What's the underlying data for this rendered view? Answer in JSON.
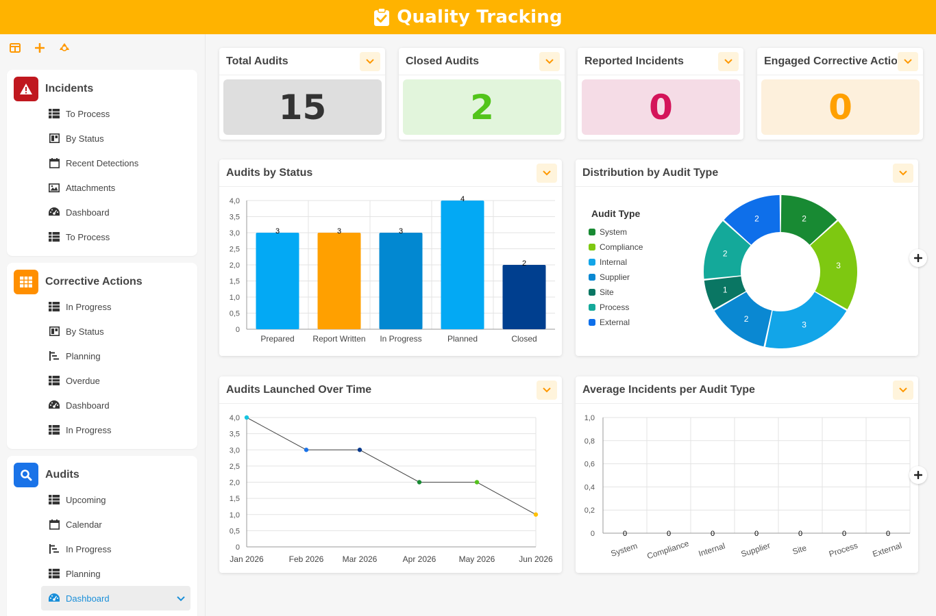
{
  "header": {
    "title": "Quality Tracking"
  },
  "sidebar": {
    "sections": [
      {
        "title": "Incidents",
        "color": "#c0181f",
        "icon": "warning-icon",
        "items": [
          {
            "label": "To Process",
            "icon": "table-icon"
          },
          {
            "label": "By Status",
            "icon": "board-icon"
          },
          {
            "label": "Recent Detections",
            "icon": "calendar-icon"
          },
          {
            "label": "Attachments",
            "icon": "image-icon"
          },
          {
            "label": "Dashboard",
            "icon": "gauge-icon"
          },
          {
            "label": "To Process",
            "icon": "table-icon"
          }
        ]
      },
      {
        "title": "Corrective Actions",
        "color": "#ff8f00",
        "icon": "grid-icon",
        "items": [
          {
            "label": "In Progress",
            "icon": "table-icon"
          },
          {
            "label": "By Status",
            "icon": "board-icon"
          },
          {
            "label": "Planning",
            "icon": "gantt-icon"
          },
          {
            "label": "Overdue",
            "icon": "table-icon"
          },
          {
            "label": "Dashboard",
            "icon": "gauge-icon"
          },
          {
            "label": "In Progress",
            "icon": "table-icon"
          }
        ]
      },
      {
        "title": "Audits",
        "color": "#1a73e8",
        "icon": "search-icon",
        "items": [
          {
            "label": "Upcoming",
            "icon": "table-icon"
          },
          {
            "label": "Calendar",
            "icon": "calendar-icon"
          },
          {
            "label": "In Progress",
            "icon": "gantt-icon"
          },
          {
            "label": "Planning",
            "icon": "table-icon"
          },
          {
            "label": "Dashboard",
            "icon": "gauge-icon",
            "active": true
          }
        ]
      }
    ]
  },
  "kpis": [
    {
      "title": "Total Audits",
      "value": "15",
      "bg": "#dedede",
      "fg": "#333333"
    },
    {
      "title": "Closed Audits",
      "value": "2",
      "bg": "#e2f5dc",
      "fg": "#52c41a"
    },
    {
      "title": "Reported Incidents",
      "value": "0",
      "bg": "#f5dce6",
      "fg": "#d4145a"
    },
    {
      "title": "Engaged Corrective Actions",
      "value": "0",
      "bg": "#fdf0dc",
      "fg": "#ffa000"
    }
  ],
  "panels": {
    "status": {
      "title": "Audits by Status"
    },
    "distribution": {
      "title": "Distribution by Audit Type"
    },
    "timeline": {
      "title": "Audits Launched Over Time"
    },
    "average": {
      "title": "Average Incidents per Audit Type"
    }
  },
  "chart_data": [
    {
      "type": "bar",
      "title": "Audits by Status",
      "categories": [
        "Prepared",
        "Report Written",
        "In Progress",
        "Planned",
        "Closed"
      ],
      "values": [
        3,
        3,
        3,
        4,
        2
      ],
      "colors": [
        "#03a9f4",
        "#ffa000",
        "#0288d1",
        "#03a9f4",
        "#003f8f"
      ],
      "ylim": [
        0,
        4
      ],
      "yticks": [
        "0",
        "0,5",
        "1,0",
        "1,5",
        "2,0",
        "2,5",
        "3,0",
        "3,5",
        "4,0"
      ],
      "grid": true
    },
    {
      "type": "pie",
      "title": "Distribution by Audit Type",
      "legend_title": "Audit Type",
      "legend_position": "left",
      "labels": [
        "System",
        "Compliance",
        "Internal",
        "Supplier",
        "Site",
        "Process",
        "External"
      ],
      "values": [
        2,
        3,
        3,
        2,
        1,
        2,
        2
      ],
      "colors": [
        "#188a33",
        "#7ec811",
        "#12a5e8",
        "#0a88d2",
        "#0a7663",
        "#14a99a",
        "#0e6fea"
      ]
    },
    {
      "type": "line",
      "title": "Audits Launched Over Time",
      "x": [
        "Jan 2026",
        "Feb 2026",
        "Mar 2026",
        "Apr 2026",
        "May 2026",
        "Jun 2026"
      ],
      "values": [
        4,
        3,
        3,
        2,
        2,
        1
      ],
      "point_colors": [
        "#16c4e0",
        "#1a73e8",
        "#0a3a8c",
        "#188a33",
        "#55c21d",
        "#ffc107"
      ],
      "ylim": [
        0,
        4
      ],
      "yticks": [
        "0",
        "0,5",
        "1,0",
        "1,5",
        "2,0",
        "2,5",
        "3,0",
        "3,5",
        "4,0"
      ],
      "grid": true
    },
    {
      "type": "bar",
      "title": "Average Incidents per Audit Type",
      "categories": [
        "System",
        "Compliance",
        "Internal",
        "Supplier",
        "Site",
        "Process",
        "External"
      ],
      "values": [
        0,
        0,
        0,
        0,
        0,
        0,
        0
      ],
      "ylim": [
        0,
        1
      ],
      "yticks": [
        "0",
        "0,2",
        "0,4",
        "0,6",
        "0,8",
        "1,0"
      ],
      "grid": true
    }
  ]
}
